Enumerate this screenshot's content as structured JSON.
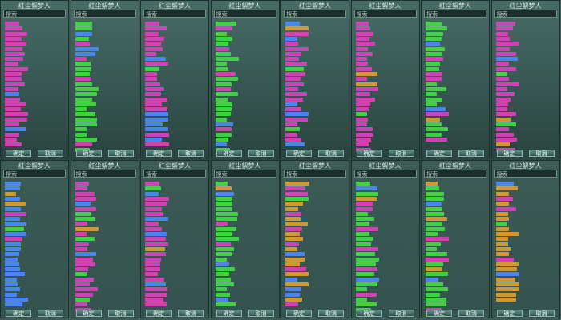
{
  "panels": [
    {
      "header": "红尘絮梦人",
      "search": "搜索",
      "buttons": [
        "确定",
        "取消"
      ]
    },
    {
      "header": "红尘絮梦人",
      "search": "搜索",
      "buttons": [
        "确定",
        "取消"
      ]
    },
    {
      "header": "红尘絮梦人",
      "search": "搜索",
      "buttons": [
        "确定",
        "取消"
      ]
    },
    {
      "header": "红尘絮梦人",
      "search": "搜索",
      "buttons": [
        "确定",
        "取消"
      ]
    },
    {
      "header": "红尘絮梦人",
      "search": "搜索",
      "buttons": [
        "确定",
        "取消"
      ]
    },
    {
      "header": "红尘絮梦人",
      "search": "搜索",
      "buttons": [
        "确定",
        "取消"
      ]
    },
    {
      "header": "红尘絮梦人",
      "search": "搜索",
      "buttons": [
        "确定",
        "取消"
      ]
    },
    {
      "header": "红尘絮梦人",
      "search": "搜索",
      "buttons": [
        "确定",
        "取消"
      ]
    },
    {
      "header": "红尘絮梦人",
      "search": "搜索",
      "buttons": [
        "确定",
        "取消"
      ]
    },
    {
      "header": "红尘絮梦人",
      "search": "搜索",
      "buttons": [
        "确定",
        "取消"
      ]
    },
    {
      "header": "红尘絮梦人",
      "search": "搜索",
      "buttons": [
        "确定",
        "取消"
      ]
    },
    {
      "header": "红尘絮梦人",
      "search": "搜索",
      "buttons": [
        "确定",
        "取消"
      ]
    },
    {
      "header": "红尘絮梦人",
      "search": "搜索",
      "buttons": [
        "确定",
        "取消"
      ]
    },
    {
      "header": "红尘絮梦人",
      "search": "搜索",
      "buttons": [
        "确定",
        "取消"
      ]
    },
    {
      "header": "红尘絮梦人",
      "search": "搜索",
      "buttons": [
        "确定",
        "取消"
      ]
    },
    {
      "header": "红尘絮梦人",
      "search": "搜索",
      "buttons": [
        "确定",
        "取消"
      ]
    }
  ]
}
